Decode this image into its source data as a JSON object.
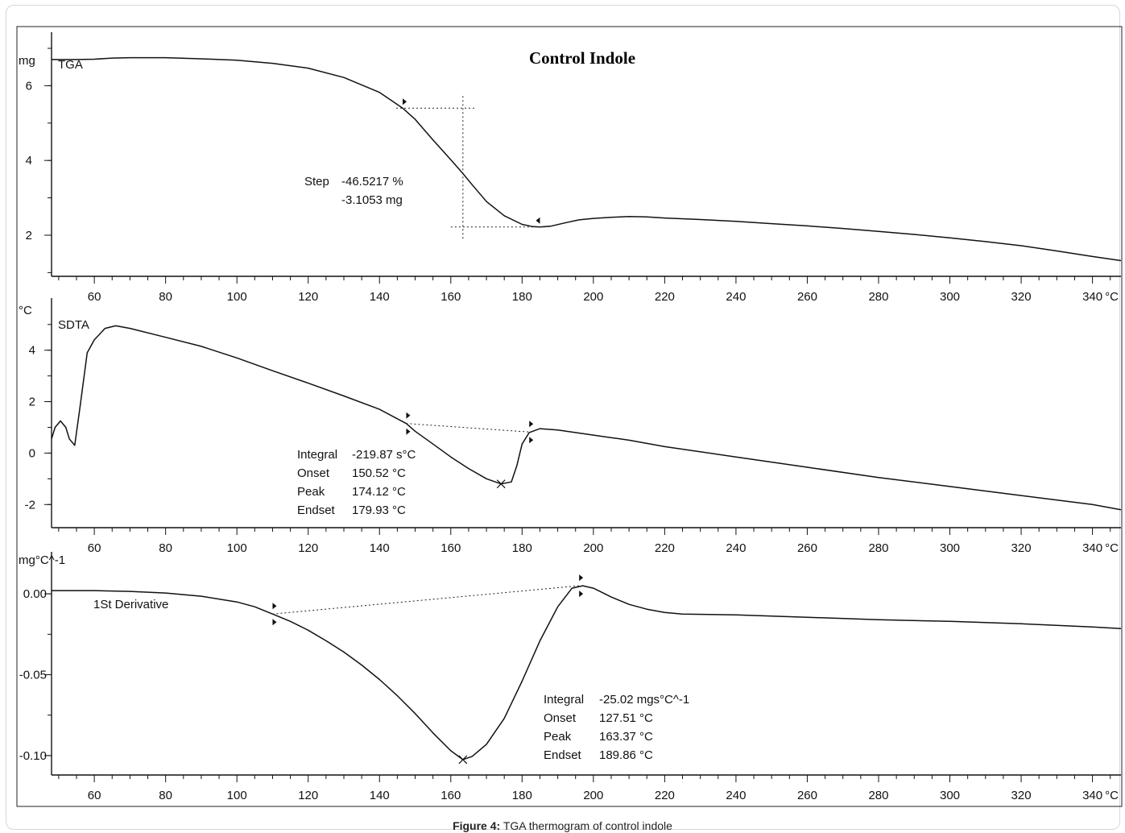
{
  "figure": {
    "title": "Control Indole",
    "caption_label": "Figure 4:",
    "caption_text": "TGA thermogram of control indole"
  },
  "chart_data": [
    {
      "type": "line",
      "panel": "TGA",
      "series_label": "TGA",
      "y_unit": "mg",
      "x_unit": "°C",
      "xlim": [
        48,
        348
      ],
      "ylim": [
        0.9,
        7.0
      ],
      "x_ticks": [
        60,
        80,
        100,
        120,
        140,
        160,
        180,
        200,
        220,
        240,
        260,
        280,
        300,
        320,
        340
      ],
      "y_ticks": [
        2,
        4,
        6
      ],
      "x": [
        48,
        55,
        60,
        65,
        70,
        80,
        90,
        100,
        110,
        120,
        130,
        140,
        146.5,
        150,
        155,
        160,
        163.4,
        166,
        170,
        175,
        180,
        183,
        185,
        188,
        192,
        196,
        200,
        205,
        210,
        215,
        220,
        230,
        240,
        250,
        260,
        270,
        280,
        290,
        300,
        310,
        320,
        330,
        340,
        348
      ],
      "y": [
        6.7,
        6.7,
        6.71,
        6.74,
        6.75,
        6.75,
        6.72,
        6.68,
        6.6,
        6.47,
        6.22,
        5.82,
        5.4,
        5.1,
        4.55,
        4.02,
        3.65,
        3.35,
        2.9,
        2.52,
        2.29,
        2.23,
        2.22,
        2.24,
        2.33,
        2.41,
        2.45,
        2.48,
        2.5,
        2.49,
        2.46,
        2.42,
        2.37,
        2.31,
        2.25,
        2.18,
        2.1,
        2.02,
        1.93,
        1.83,
        1.72,
        1.58,
        1.43,
        1.32
      ],
      "annotation": {
        "step_label": "Step",
        "step_percent": "-46.5217 %",
        "step_mass": "-3.1053 mg",
        "start_x": 146.5,
        "start_y": 5.4,
        "end_x": 185,
        "end_y": 2.22,
        "mid_x": 163.4
      }
    },
    {
      "type": "line",
      "panel": "SDTA",
      "series_label": "SDTA",
      "y_unit": "°C",
      "x_unit": "°C",
      "xlim": [
        48,
        348
      ],
      "ylim": [
        -2.9,
        5.4
      ],
      "x_ticks": [
        60,
        80,
        100,
        120,
        140,
        160,
        180,
        200,
        220,
        240,
        260,
        280,
        300,
        320,
        340
      ],
      "y_ticks": [
        -2,
        0,
        2,
        4
      ],
      "x": [
        48,
        49,
        50.5,
        52,
        53,
        54.5,
        56,
        58,
        60,
        63,
        66,
        70,
        80,
        90,
        100,
        110,
        120,
        130,
        140,
        147.5,
        150,
        155,
        160,
        165,
        170,
        174.1,
        177,
        178.5,
        180,
        182,
        185,
        190,
        200,
        210,
        220,
        240,
        260,
        280,
        300,
        320,
        340,
        348
      ],
      "y": [
        0.55,
        1.0,
        1.25,
        1.0,
        0.55,
        0.3,
        1.8,
        3.9,
        4.4,
        4.85,
        4.95,
        4.85,
        4.5,
        4.15,
        3.7,
        3.2,
        2.72,
        2.22,
        1.7,
        1.15,
        0.85,
        0.35,
        -0.15,
        -0.6,
        -1.0,
        -1.2,
        -1.12,
        -0.5,
        0.35,
        0.8,
        0.95,
        0.9,
        0.7,
        0.5,
        0.25,
        -0.15,
        -0.55,
        -0.95,
        -1.3,
        -1.65,
        -2.0,
        -2.2
      ],
      "annotation": {
        "integral_label": "Integral",
        "integral_value": "-219.87 s°C",
        "onset_label": "Onset",
        "onset_value": "150.52 °C",
        "peak_label": "Peak",
        "peak_value": "174.12 °C",
        "endset_label": "Endset",
        "endset_value": "179.93 °C",
        "baseline_start_x": 147.5,
        "baseline_start_y": 1.15,
        "baseline_end_x": 182,
        "baseline_end_y": 0.82,
        "peak_x": 174.1,
        "peak_y": -1.2
      }
    },
    {
      "type": "line",
      "panel": "1St Derivative",
      "series_label": "1St Derivative",
      "y_unit": "mg°C^-1",
      "x_unit": "°C",
      "xlim": [
        48,
        348
      ],
      "ylim": [
        -0.112,
        0.016
      ],
      "x_ticks": [
        60,
        80,
        100,
        120,
        140,
        160,
        180,
        200,
        220,
        240,
        260,
        280,
        300,
        320,
        340
      ],
      "y_ticks": [
        -0.1,
        -0.05,
        0.0
      ],
      "y_tick_labels": [
        "-0.10",
        "-0.05",
        "0.00"
      ],
      "x": [
        48,
        60,
        70,
        80,
        90,
        100,
        105,
        110,
        115,
        120,
        125,
        130,
        135,
        140,
        145,
        150,
        155,
        160,
        163.4,
        166,
        170,
        175,
        180,
        185,
        190,
        194,
        197,
        200,
        205,
        210,
        215,
        220,
        225,
        240,
        260,
        280,
        300,
        320,
        340,
        348
      ],
      "y": [
        0.002,
        0.002,
        0.0015,
        0.0005,
        -0.0015,
        -0.005,
        -0.008,
        -0.0125,
        -0.017,
        -0.0225,
        -0.029,
        -0.036,
        -0.044,
        -0.053,
        -0.063,
        -0.074,
        -0.086,
        -0.097,
        -0.1025,
        -0.1005,
        -0.093,
        -0.077,
        -0.054,
        -0.029,
        -0.008,
        0.0035,
        0.005,
        0.0035,
        -0.002,
        -0.0065,
        -0.0095,
        -0.0115,
        -0.0125,
        -0.013,
        -0.0145,
        -0.016,
        -0.017,
        -0.0185,
        -0.0205,
        -0.0215
      ],
      "annotation": {
        "integral_label": "Integral",
        "integral_value": "-25.02 mgs°C^-1",
        "onset_label": "Onset",
        "onset_value": "127.51 °C",
        "peak_label": "Peak",
        "peak_value": "163.37 °C",
        "endset_label": "Endset",
        "endset_value": "189.86 °C",
        "baseline_start_x": 110,
        "baseline_start_y": -0.0125,
        "baseline_end_x": 196,
        "baseline_end_y": 0.005,
        "peak_x": 163.4,
        "peak_y": -0.1025
      }
    }
  ]
}
